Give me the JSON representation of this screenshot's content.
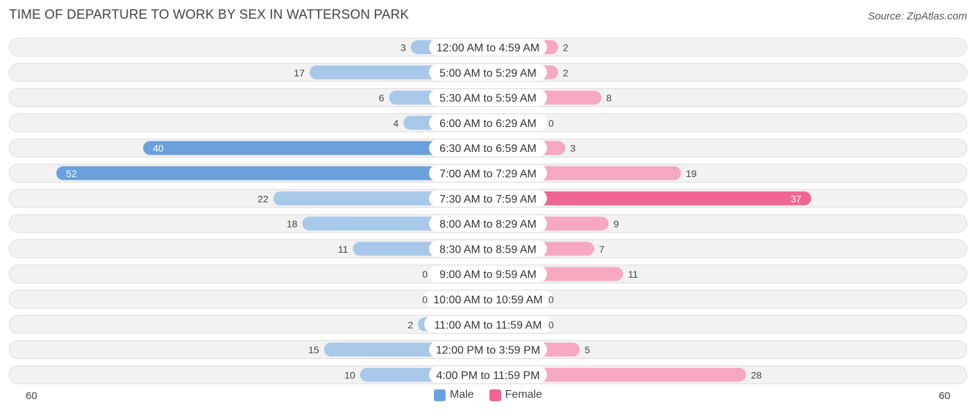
{
  "header": {
    "title": "TIME OF DEPARTURE TO WORK BY SEX IN WATTERSON PARK",
    "source": "Source: ZipAtlas.com"
  },
  "colors": {
    "male_light": "#a8c8ea",
    "male_dark": "#6aa1dd",
    "female_light": "#f7a8c1",
    "female_dark": "#f06592",
    "row_bg": "#f2f2f2",
    "row_border": "#dcdcdc"
  },
  "legend": {
    "male": "Male",
    "female": "Female"
  },
  "axis": {
    "left_label": "60",
    "right_label": "60"
  },
  "chart_data": {
    "type": "bar",
    "orientation": "horizontal-diverging",
    "title": "TIME OF DEPARTURE TO WORK BY SEX IN WATTERSON PARK",
    "xlim": [
      -60,
      60
    ],
    "categories": [
      "12:00 AM to 4:59 AM",
      "5:00 AM to 5:29 AM",
      "5:30 AM to 5:59 AM",
      "6:00 AM to 6:29 AM",
      "6:30 AM to 6:59 AM",
      "7:00 AM to 7:29 AM",
      "7:30 AM to 7:59 AM",
      "8:00 AM to 8:29 AM",
      "8:30 AM to 8:59 AM",
      "9:00 AM to 9:59 AM",
      "10:00 AM to 10:59 AM",
      "11:00 AM to 11:59 AM",
      "12:00 PM to 3:59 PM",
      "4:00 PM to 11:59 PM"
    ],
    "series": [
      {
        "name": "Male",
        "values": [
          3,
          17,
          6,
          4,
          40,
          52,
          22,
          18,
          11,
          0,
          0,
          2,
          15,
          10
        ]
      },
      {
        "name": "Female",
        "values": [
          2,
          2,
          8,
          0,
          3,
          19,
          37,
          9,
          7,
          11,
          0,
          0,
          5,
          28
        ]
      }
    ],
    "legend_position": "bottom-center"
  }
}
